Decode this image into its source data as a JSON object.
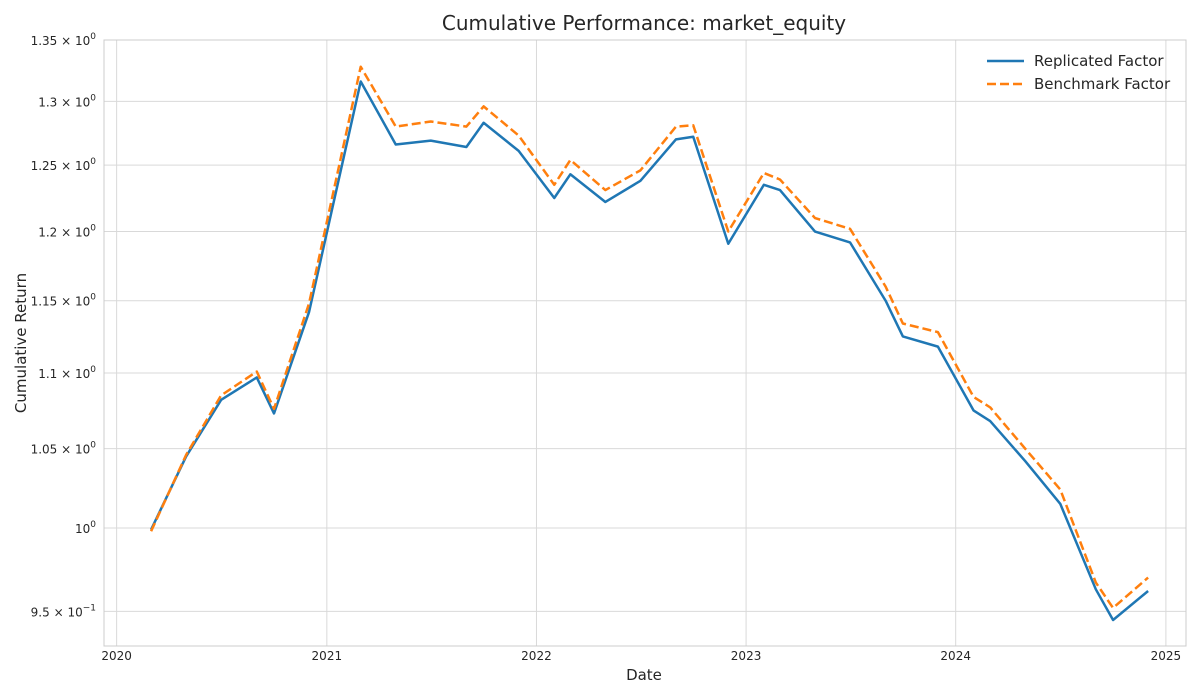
{
  "chart_data": {
    "type": "line",
    "title": "Cumulative Performance: market_equity",
    "xlabel": "Date",
    "ylabel": "Cumulative Return",
    "xlim": [
      "2019-12-10",
      "2025-02-05"
    ],
    "ylim": [
      0.93,
      1.35
    ],
    "yscale": "log",
    "grid": true,
    "legend_position": "top-right",
    "x_ticks": [
      "2020",
      "2021",
      "2022",
      "2023",
      "2024",
      "2025"
    ],
    "y_ticks": [
      {
        "value": 0.95,
        "mantissa": "9.5",
        "exponent": "−1"
      },
      {
        "value": 1.0,
        "mantissa": "",
        "exponent": "0"
      },
      {
        "value": 1.05,
        "mantissa": "1.05",
        "exponent": "0"
      },
      {
        "value": 1.1,
        "mantissa": "1.1",
        "exponent": "0"
      },
      {
        "value": 1.15,
        "mantissa": "1.15",
        "exponent": "0"
      },
      {
        "value": 1.2,
        "mantissa": "1.2",
        "exponent": "0"
      },
      {
        "value": 1.25,
        "mantissa": "1.25",
        "exponent": "0"
      },
      {
        "value": 1.3,
        "mantissa": "1.3",
        "exponent": "0"
      },
      {
        "value": 1.35,
        "mantissa": "1.35",
        "exponent": "0"
      }
    ],
    "x": [
      "2020-03-01",
      "2020-05-01",
      "2020-07-01",
      "2020-09-01",
      "2020-10-01",
      "2020-12-01",
      "2021-03-01",
      "2021-05-01",
      "2021-07-01",
      "2021-09-01",
      "2021-10-01",
      "2021-12-01",
      "2022-02-01",
      "2022-03-01",
      "2022-05-01",
      "2022-07-01",
      "2022-09-01",
      "2022-10-01",
      "2022-12-01",
      "2023-02-01",
      "2023-03-01",
      "2023-05-01",
      "2023-07-01",
      "2023-09-01",
      "2023-10-01",
      "2023-12-01",
      "2024-02-01",
      "2024-03-01",
      "2024-05-01",
      "2024-07-01",
      "2024-09-01",
      "2024-10-01",
      "2024-12-01"
    ],
    "series": [
      {
        "name": "Replicated Factor",
        "color": "#1f77b4",
        "style": "solid",
        "values": [
          0.999,
          1.045,
          1.082,
          1.097,
          1.073,
          1.142,
          1.316,
          1.266,
          1.269,
          1.264,
          1.283,
          1.261,
          1.225,
          1.243,
          1.222,
          1.238,
          1.27,
          1.272,
          1.191,
          1.235,
          1.231,
          1.2,
          1.192,
          1.15,
          1.125,
          1.118,
          1.075,
          1.068,
          1.042,
          1.015,
          0.963,
          0.945,
          0.962
        ]
      },
      {
        "name": "Benchmark Factor",
        "color": "#ff7f0e",
        "style": "dashed",
        "values": [
          0.998,
          1.046,
          1.085,
          1.101,
          1.076,
          1.148,
          1.328,
          1.28,
          1.284,
          1.28,
          1.296,
          1.273,
          1.235,
          1.254,
          1.231,
          1.246,
          1.28,
          1.281,
          1.2,
          1.244,
          1.239,
          1.21,
          1.202,
          1.16,
          1.134,
          1.128,
          1.084,
          1.077,
          1.05,
          1.024,
          0.967,
          0.952,
          0.97
        ]
      }
    ]
  }
}
